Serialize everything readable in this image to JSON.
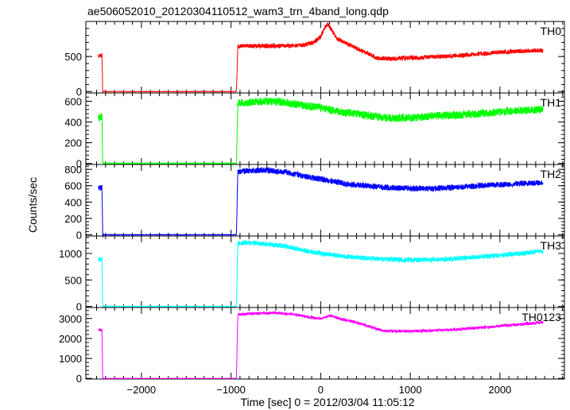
{
  "chart_data": {
    "type": "line",
    "title": "ae506052010_20120304110512_wam3_trn_4band_long.qdp",
    "xlabel": "Time [sec] 0 = 2012/03/04 11:05:12",
    "ylabel": "Counts/sec",
    "xlim": [
      -2620,
      2720
    ],
    "xticks": [
      -2000,
      -1000,
      0,
      1000,
      2000
    ],
    "xticklabels": [
      "−2000",
      "−1000",
      "0",
      "1000",
      "2000"
    ],
    "grid": false,
    "panels": [
      {
        "name": "TH0",
        "color": "#ff0000",
        "ylim": [
          -20,
          1000
        ],
        "yticks": [
          0,
          500
        ],
        "points": [
          [
            -2480,
            510
          ],
          [
            -2440,
            520
          ],
          [
            -2432,
            0
          ],
          [
            -940,
            0
          ],
          [
            -925,
            650
          ],
          [
            -700,
            650
          ],
          [
            -400,
            650
          ],
          [
            -200,
            660
          ],
          [
            -80,
            700
          ],
          [
            0,
            780
          ],
          [
            40,
            900
          ],
          [
            80,
            960
          ],
          [
            120,
            880
          ],
          [
            180,
            760
          ],
          [
            300,
            680
          ],
          [
            500,
            560
          ],
          [
            620,
            480
          ],
          [
            800,
            470
          ],
          [
            1000,
            480
          ],
          [
            1200,
            490
          ],
          [
            1500,
            510
          ],
          [
            1800,
            540
          ],
          [
            2100,
            570
          ],
          [
            2300,
            580
          ],
          [
            2480,
            590
          ]
        ],
        "noise": 30
      },
      {
        "name": "TH1",
        "color": "#00ff00",
        "ylim": [
          -10,
          680
        ],
        "yticks": [
          0,
          200,
          400,
          600
        ],
        "points": [
          [
            -2480,
            440
          ],
          [
            -2440,
            450
          ],
          [
            -2432,
            0
          ],
          [
            -940,
            0
          ],
          [
            -925,
            580
          ],
          [
            -800,
            590
          ],
          [
            -600,
            600
          ],
          [
            -400,
            590
          ],
          [
            -200,
            560
          ],
          [
            0,
            540
          ],
          [
            200,
            500
          ],
          [
            400,
            480
          ],
          [
            700,
            440
          ],
          [
            1000,
            440
          ],
          [
            1300,
            460
          ],
          [
            1600,
            470
          ],
          [
            1900,
            490
          ],
          [
            2200,
            510
          ],
          [
            2480,
            520
          ]
        ],
        "noise": 38
      },
      {
        "name": "TH2",
        "color": "#0000ff",
        "ylim": [
          -15,
          860
        ],
        "yticks": [
          0,
          200,
          400,
          600,
          800
        ],
        "points": [
          [
            -2480,
            570
          ],
          [
            -2440,
            580
          ],
          [
            -2432,
            0
          ],
          [
            -940,
            0
          ],
          [
            -925,
            770
          ],
          [
            -800,
            780
          ],
          [
            -600,
            790
          ],
          [
            -400,
            770
          ],
          [
            -200,
            720
          ],
          [
            0,
            680
          ],
          [
            300,
            620
          ],
          [
            600,
            590
          ],
          [
            900,
            570
          ],
          [
            1200,
            565
          ],
          [
            1500,
            580
          ],
          [
            1800,
            600
          ],
          [
            2100,
            620
          ],
          [
            2300,
            630
          ],
          [
            2480,
            640
          ]
        ],
        "noise": 35
      },
      {
        "name": "TH3",
        "color": "#00ffff",
        "ylim": [
          -20,
          1330
        ],
        "yticks": [
          0,
          500,
          1000
        ],
        "points": [
          [
            -2480,
            880
          ],
          [
            -2440,
            900
          ],
          [
            -2432,
            0
          ],
          [
            -940,
            0
          ],
          [
            -925,
            1190
          ],
          [
            -800,
            1200
          ],
          [
            -600,
            1180
          ],
          [
            -400,
            1140
          ],
          [
            -200,
            1060
          ],
          [
            0,
            1000
          ],
          [
            300,
            940
          ],
          [
            600,
            900
          ],
          [
            900,
            880
          ],
          [
            1200,
            880
          ],
          [
            1500,
            900
          ],
          [
            1800,
            940
          ],
          [
            2100,
            980
          ],
          [
            2300,
            1010
          ],
          [
            2480,
            1040
          ]
        ],
        "noise": 45
      },
      {
        "name": "TH0123",
        "color": "#ff00ff",
        "ylim": [
          -30,
          3550
        ],
        "yticks": [
          0,
          1000,
          2000,
          3000
        ],
        "points": [
          [
            -2480,
            2420
          ],
          [
            -2440,
            2440
          ],
          [
            -2432,
            0
          ],
          [
            -940,
            0
          ],
          [
            -925,
            3200
          ],
          [
            -700,
            3260
          ],
          [
            -500,
            3280
          ],
          [
            -300,
            3200
          ],
          [
            -100,
            3050
          ],
          [
            0,
            3000
          ],
          [
            60,
            3080
          ],
          [
            110,
            3150
          ],
          [
            200,
            3000
          ],
          [
            400,
            2800
          ],
          [
            700,
            2380
          ],
          [
            1000,
            2360
          ],
          [
            1300,
            2400
          ],
          [
            1600,
            2480
          ],
          [
            1900,
            2580
          ],
          [
            2200,
            2700
          ],
          [
            2480,
            2800
          ]
        ],
        "noise": 70
      }
    ]
  }
}
